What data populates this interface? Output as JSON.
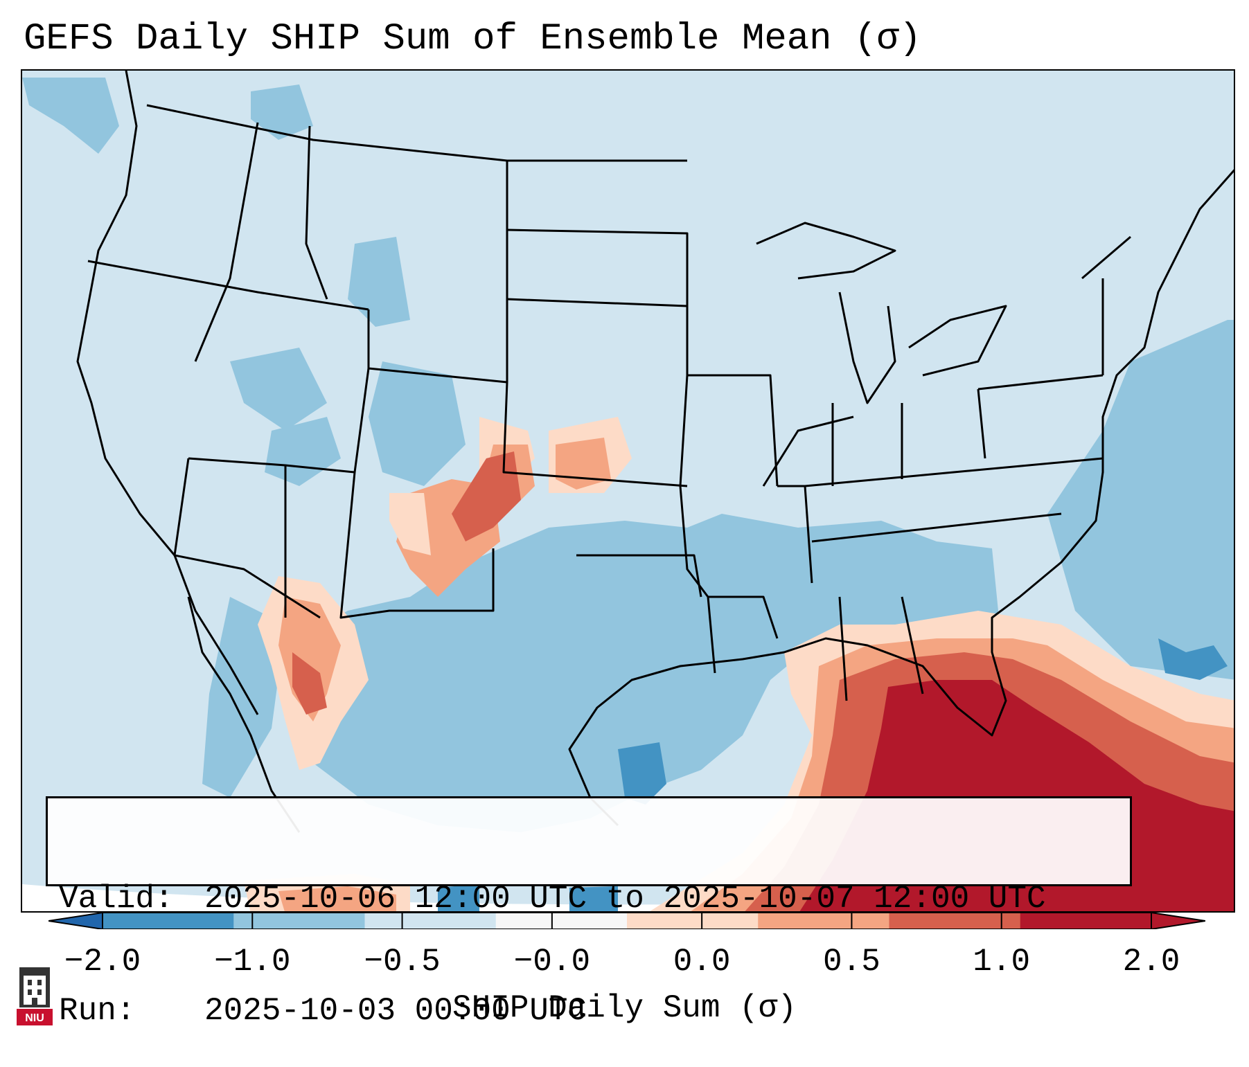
{
  "title": "GEFS Daily SHIP Sum of Ensemble Mean (σ)",
  "info": {
    "valid_label": "Valid:",
    "valid_value": "2025-10-06 12:00 UTC to 2025-10-07 12:00 UTC",
    "run_label": "Run:",
    "run_value": "2025-10-03 00:00 UTC"
  },
  "colorbar": {
    "label": "SHIP Daily Sum (σ)",
    "ticks": [
      "−2.0",
      "−1.0",
      "−0.5",
      "−0.0",
      "0.0",
      "0.5",
      "1.0",
      "2.0"
    ],
    "colors": [
      "#4393c3",
      "#92c5de",
      "#d1e5f0",
      "#f7f7f7",
      "#fddbc7",
      "#f4a582",
      "#d6604d",
      "#b2182b"
    ],
    "extend": "both"
  },
  "logo": {
    "text": "NIU",
    "icon": "niu-tower-logo-icon"
  },
  "map": {
    "projection": "lambert-conformal",
    "region": "CONUS",
    "background_color": "#d1e5f0",
    "icon": "conus-map-icon"
  }
}
